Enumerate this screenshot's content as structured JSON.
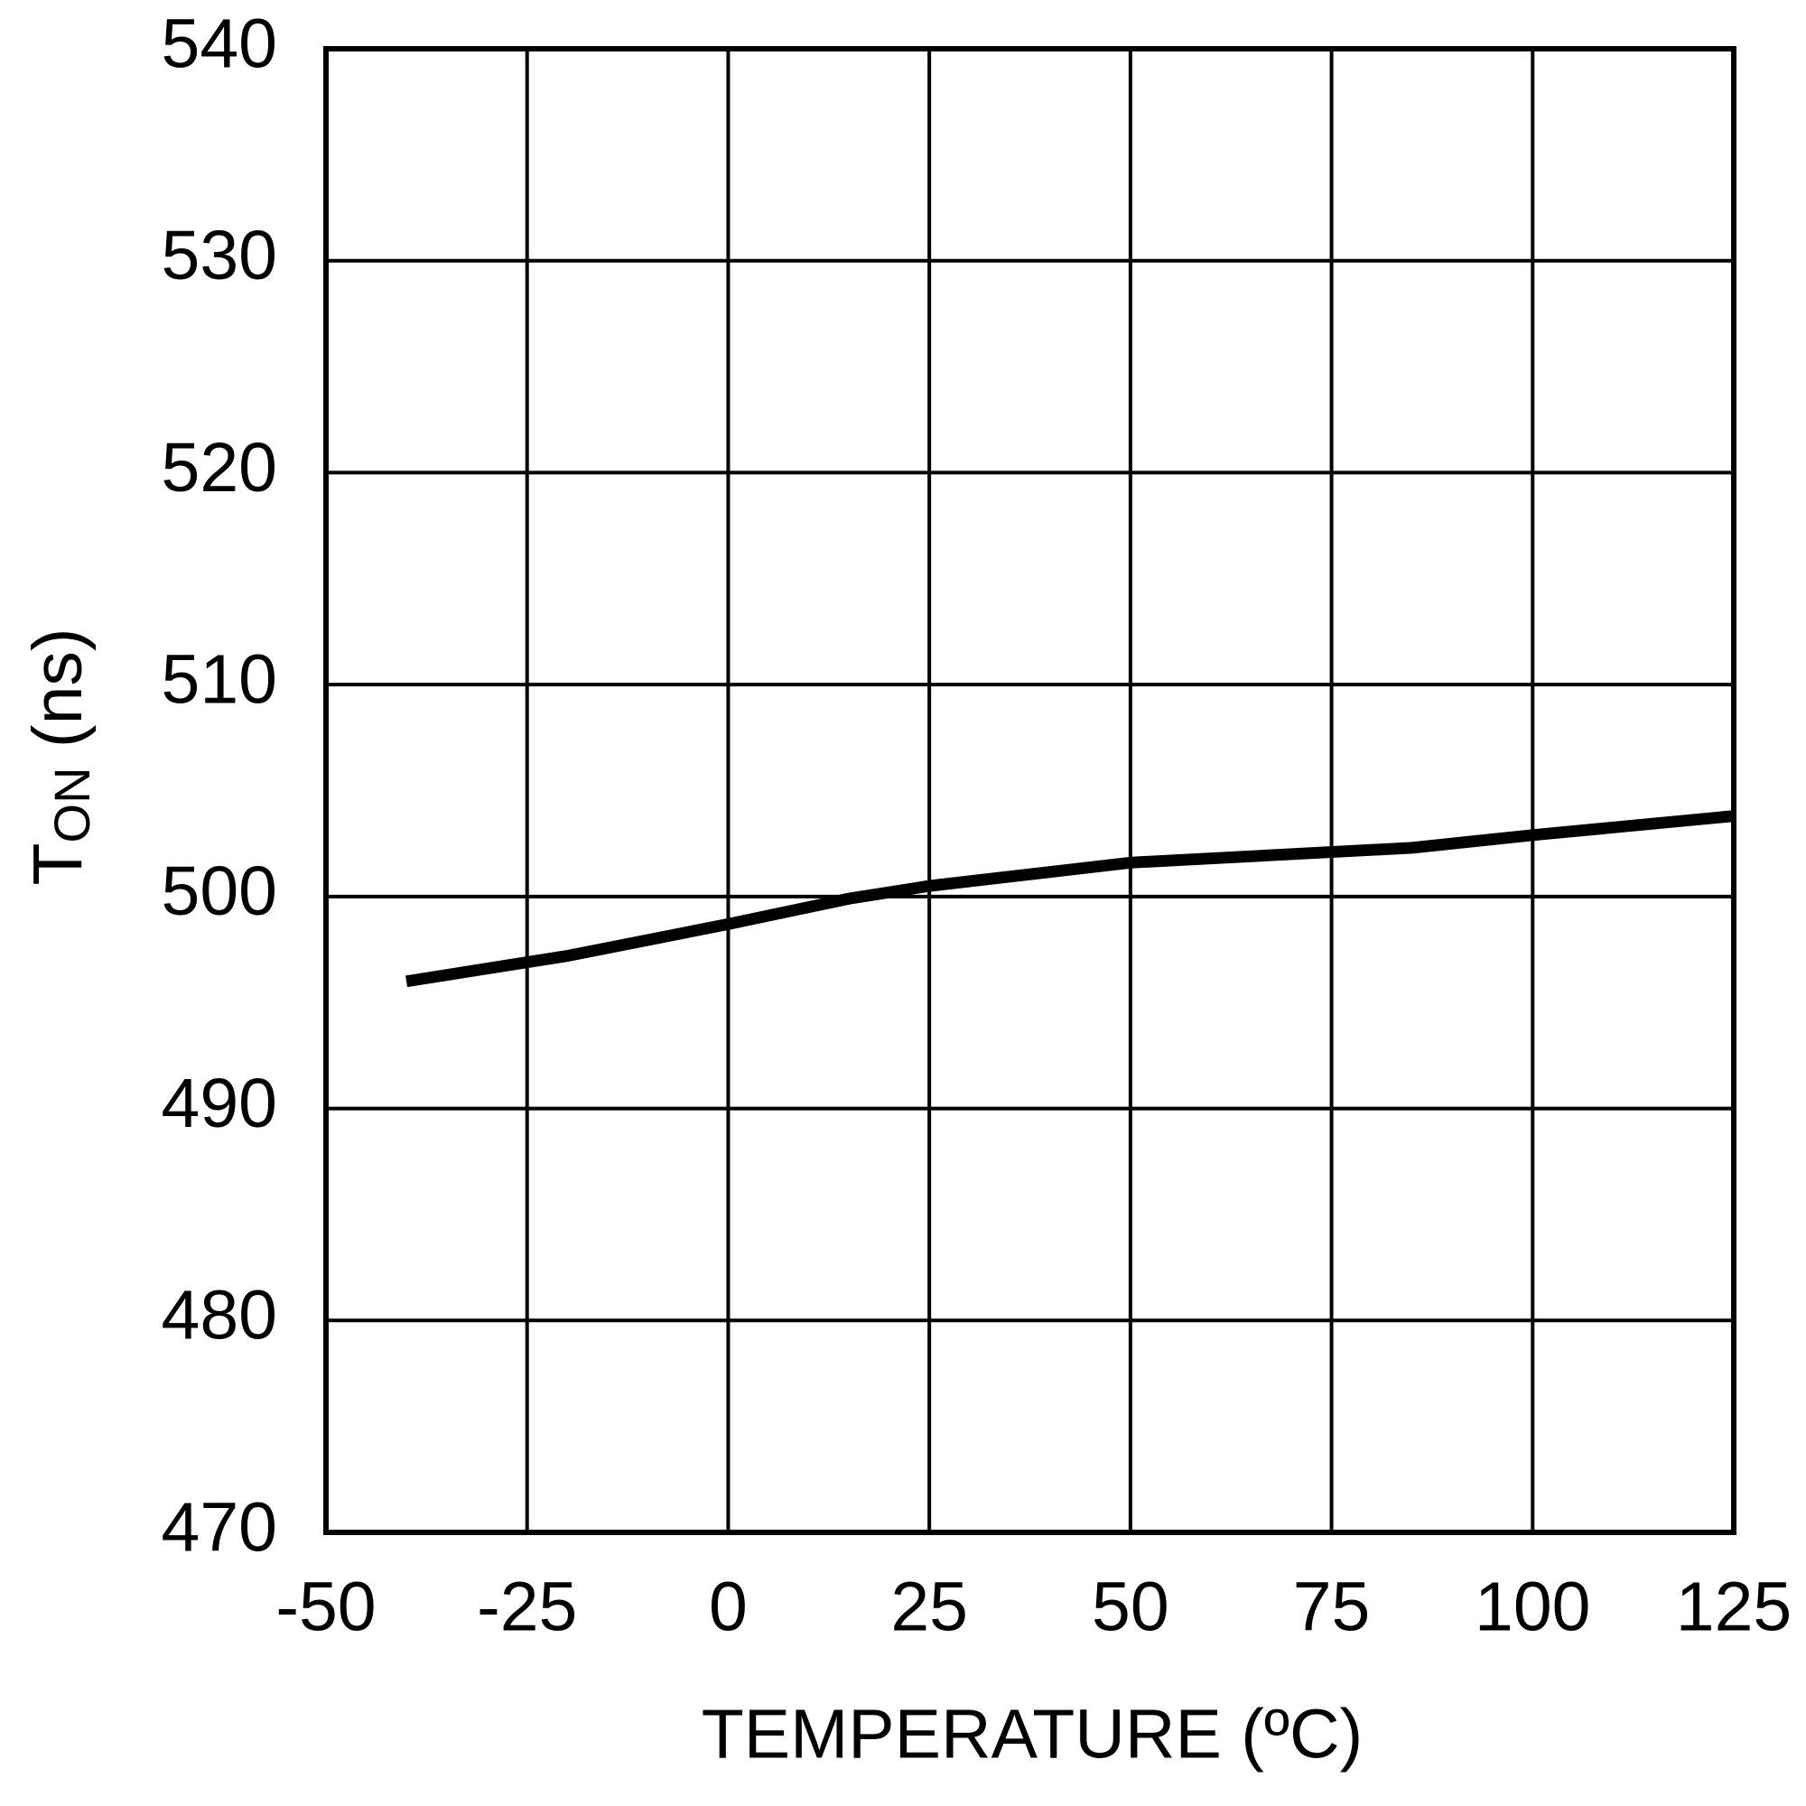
{
  "chart_data": {
    "type": "line",
    "x_label": "TEMPERATURE (ºC)",
    "y_label": {
      "symbol": "T",
      "subscript": "ON",
      "unit": "(ns)"
    },
    "x": [
      -40,
      -20,
      0,
      15,
      25,
      50,
      85,
      100,
      125
    ],
    "series": [
      {
        "color": "#000000",
        "values": [
          496.0,
          497.2,
          498.7,
          499.9,
          500.5,
          501.6,
          502.3,
          502.9,
          503.8
        ]
      }
    ],
    "xlim": [
      -50,
      125
    ],
    "xticks": [
      -50,
      -25,
      0,
      25,
      50,
      75,
      100,
      125
    ],
    "ylim": [
      470,
      540
    ],
    "yticks": [
      470,
      480,
      490,
      500,
      510,
      520,
      530,
      540
    ],
    "grid": true
  }
}
